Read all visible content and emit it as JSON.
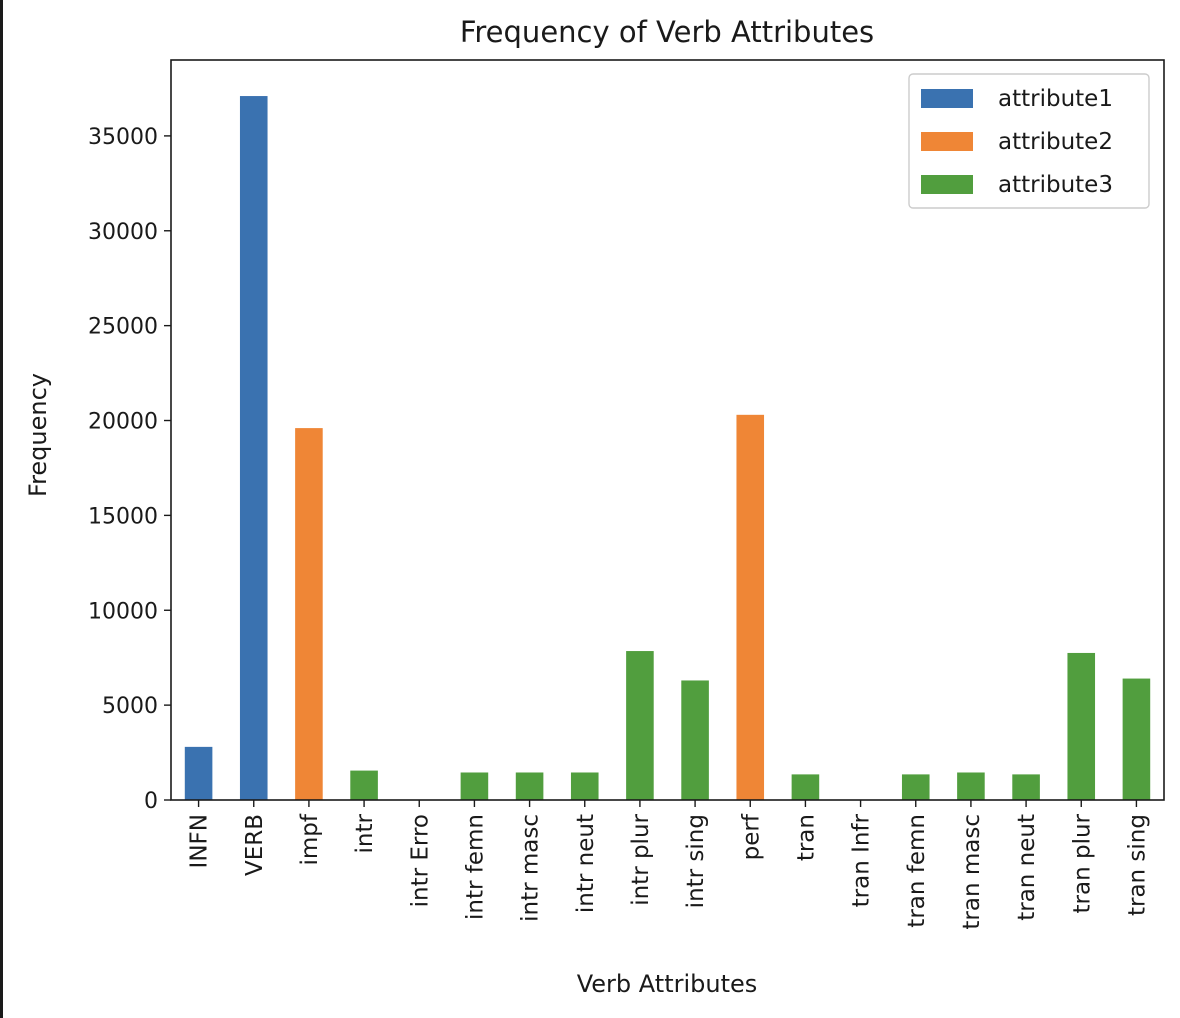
{
  "chart_data": {
    "type": "bar",
    "title": "Frequency of Verb Attributes",
    "xlabel": "Verb Attributes",
    "ylabel": "Frequency",
    "ylim": [
      0,
      39000
    ],
    "yticks": [
      0,
      5000,
      10000,
      15000,
      20000,
      25000,
      30000,
      35000
    ],
    "categories": [
      "INFN",
      "VERB",
      "impf",
      "intr",
      "intr Erro",
      "intr femn",
      "intr masc",
      "intr neut",
      "intr plur",
      "intr sing",
      "perf",
      "tran",
      "tran Infr",
      "tran femn",
      "tran masc",
      "tran neut",
      "tran plur",
      "tran sing"
    ],
    "series": [
      {
        "name": "attribute1",
        "color": "#3a72b0",
        "values": [
          2800,
          37100,
          null,
          null,
          null,
          null,
          null,
          null,
          null,
          null,
          null,
          null,
          null,
          null,
          null,
          null,
          null,
          null
        ]
      },
      {
        "name": "attribute2",
        "color": "#ef8636",
        "values": [
          null,
          null,
          19600,
          null,
          null,
          null,
          null,
          null,
          null,
          null,
          20300,
          null,
          null,
          null,
          null,
          null,
          null,
          null
        ]
      },
      {
        "name": "attribute3",
        "color": "#519e3e",
        "values": [
          null,
          null,
          null,
          1550,
          0,
          1450,
          1450,
          1450,
          7850,
          6300,
          null,
          1350,
          0,
          1350,
          1450,
          1350,
          7750,
          6400
        ]
      }
    ],
    "legend_position": "top-right",
    "grid": false
  }
}
